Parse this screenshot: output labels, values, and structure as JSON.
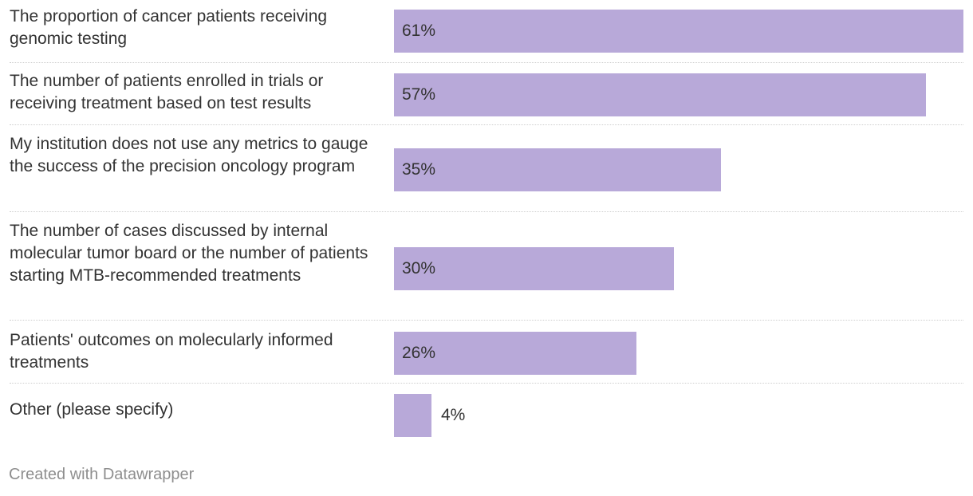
{
  "chart_data": {
    "type": "bar",
    "orientation": "horizontal",
    "title": "",
    "categories": [
      "The proportion of cancer patients receiving genomic testing",
      "The number of patients enrolled in trials or receiving treatment based on test results",
      "My institution does not use any metrics to gauge the success of the precision oncology program",
      "The number of cases discussed by internal molecular tumor board or the number of patients starting MTB-recommended treatments",
      "Patients' outcomes on molecularly informed treatments",
      "Other (please specify)"
    ],
    "values": [
      61,
      57,
      35,
      30,
      26,
      4
    ],
    "value_labels": [
      "61%",
      "57%",
      "35%",
      "30%",
      "26%",
      "4%"
    ],
    "unit": "%",
    "xlim": [
      0,
      61
    ],
    "bar_color": "#b8a9d9"
  },
  "footer": {
    "credit": "Created with Datawrapper"
  }
}
